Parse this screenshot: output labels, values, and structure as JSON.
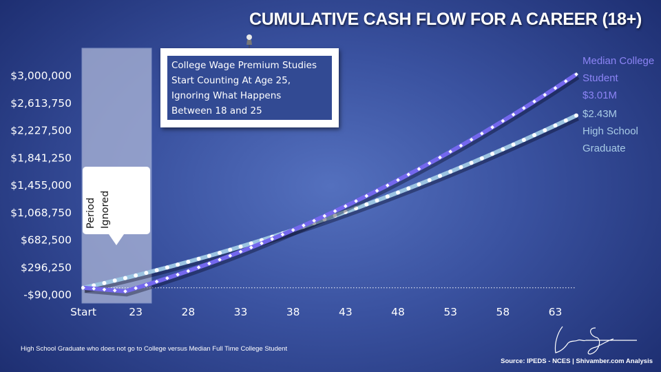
{
  "title": "CUMULATIVE CASH FLOW FOR A CAREER (18+)",
  "callout": [
    "College Wage Premium Studies",
    "Start Counting At Age 25,",
    "Ignoring What Happens",
    "Between 18 and 25"
  ],
  "period_label": [
    "Period",
    "Ignored"
  ],
  "series_labels": {
    "college": [
      "Median College",
      "Student",
      "$3.01M"
    ],
    "hs": [
      "$2.43M",
      "High School",
      "Graduate"
    ]
  },
  "footnote": "High School Graduate who does not go to College versus Median Full Time College Student",
  "source": "Source: IPEDS - NCES | Shivamber.com Analysis",
  "signature": "Len Shivamber",
  "colors": {
    "college": "#7468ee",
    "hs": "#9cc4e2",
    "shade": "#a9b3d6",
    "background": "#3a52a0"
  },
  "chart_data": {
    "type": "line",
    "title": "CUMULATIVE CASH FLOW FOR A CAREER (18+)",
    "x": [
      18,
      19,
      20,
      21,
      22,
      23,
      24,
      25,
      26,
      27,
      28,
      29,
      30,
      31,
      32,
      33,
      34,
      35,
      36,
      37,
      38,
      39,
      40,
      41,
      42,
      43,
      44,
      45,
      46,
      47,
      48,
      49,
      50,
      51,
      52,
      53,
      54,
      55,
      56,
      57,
      58,
      59,
      60,
      61,
      62,
      63,
      64,
      65
    ],
    "x_tick_labels": [
      "Start",
      "23",
      "28",
      "33",
      "38",
      "43",
      "48",
      "53",
      "58",
      "63"
    ],
    "x_tick_values": [
      18,
      23,
      28,
      33,
      38,
      43,
      48,
      53,
      58,
      63
    ],
    "y_tick_labels": [
      "-$90,000",
      "$296,250",
      "$682,500",
      "$1,068,750",
      "$1,455,000",
      "$1,841,250",
      "$2,227,500",
      "$2,613,750",
      "$3,000,000"
    ],
    "ylim": [
      -90000,
      3000000
    ],
    "xlim": [
      18,
      65
    ],
    "grid": false,
    "zero_line": "dotted",
    "shaded_region": [
      18,
      24.5
    ],
    "series": [
      {
        "name": "Median College Student",
        "marker": "diamond",
        "values": [
          0,
          -12000,
          -25000,
          -38000,
          -50000,
          -5500,
          40300,
          87300,
          135600,
          185200,
          236100,
          288200,
          341600,
          396300,
          452200,
          509400,
          567900,
          627600,
          688700,
          751000,
          814500,
          879400,
          945500,
          1012800,
          1081500,
          1151400,
          1222600,
          1295100,
          1368800,
          1443800,
          1520100,
          1597600,
          1676400,
          1756500,
          1837900,
          1920500,
          2004400,
          2089600,
          2176000,
          2263800,
          2352700,
          2443000,
          2534500,
          2627300,
          2721400,
          2816700,
          2913400,
          3011000
        ]
      },
      {
        "name": "High School Graduate",
        "marker": "circle",
        "values": [
          0,
          33000,
          66800,
          101400,
          136900,
          173100,
          210200,
          248100,
          286800,
          326300,
          366600,
          407700,
          449700,
          492400,
          536000,
          580400,
          625600,
          671600,
          718400,
          766000,
          814500,
          863700,
          913800,
          964700,
          1016400,
          1068900,
          1122200,
          1176400,
          1231300,
          1287100,
          1343700,
          1401000,
          1459200,
          1518300,
          1578100,
          1638700,
          1700200,
          1762500,
          1825500,
          1889400,
          1954100,
          2019600,
          2085900,
          2153000,
          2220900,
          2289700,
          2359300,
          2430000
        ]
      }
    ]
  }
}
